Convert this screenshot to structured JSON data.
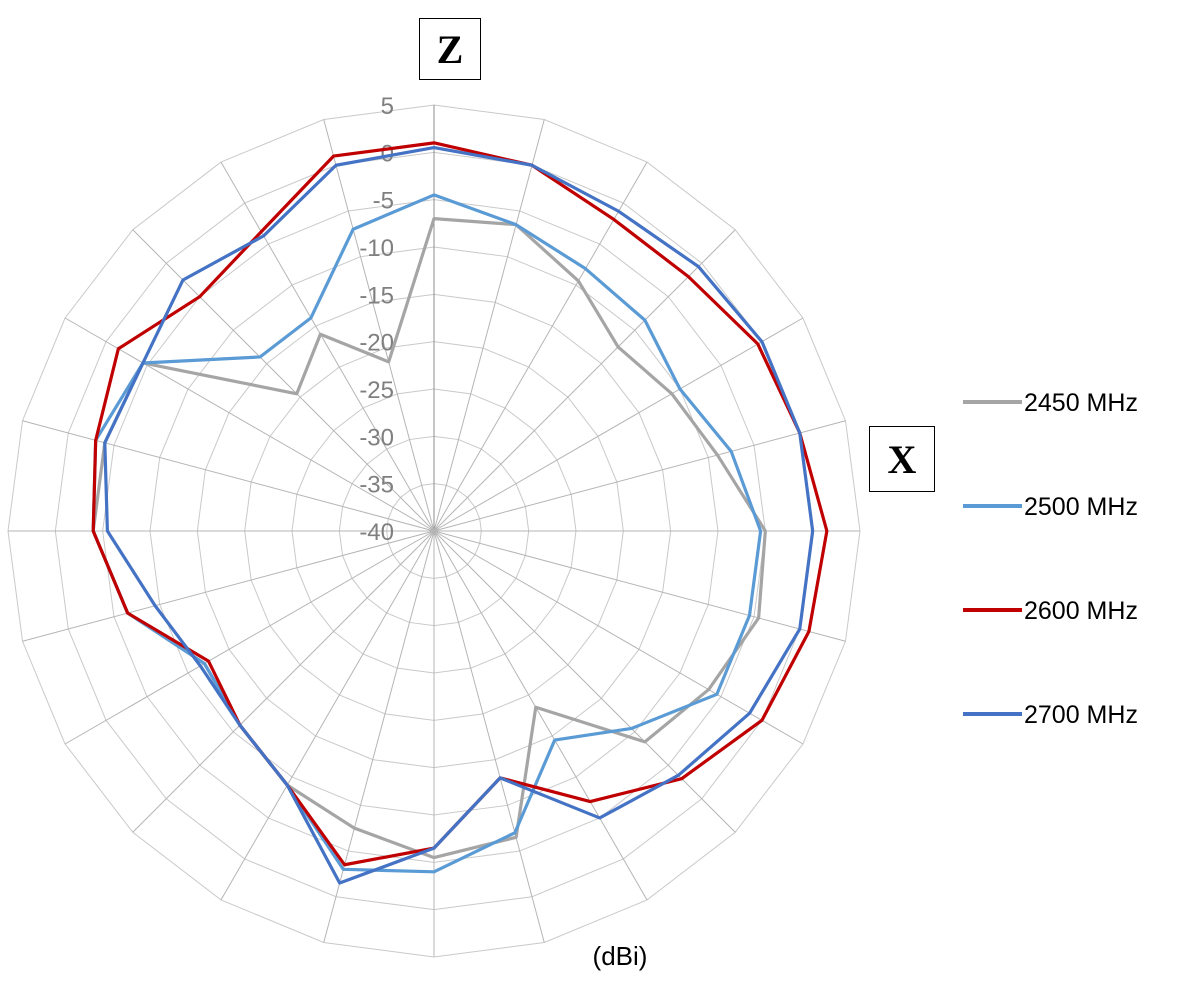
{
  "chart_data": {
    "type": "radar",
    "title": "",
    "unit": "(dBi)",
    "angle_count": 24,
    "r_min": -40,
    "r_max": 5,
    "r_step": 5,
    "r_ticks": [
      "5",
      "0",
      "-5",
      "-10",
      "-15",
      "-20",
      "-25",
      "-30",
      "-35",
      "-40"
    ],
    "axis_labels": {
      "top": "Z",
      "right": "X"
    },
    "grid": true,
    "legend_position": "right",
    "series": [
      {
        "name": "2450 MHz",
        "color": "#A5A5A5",
        "values": [
          -7.0,
          -6.5,
          -9.5,
          -12.5,
          -11.0,
          -9.0,
          -5.0,
          -4.5,
          -6.5,
          -8.5,
          -18.5,
          -6.5,
          -5.5,
          -7.5,
          -9.0,
          -11.0,
          -12.0,
          -6.5,
          -4.0,
          -4.0,
          -4.5,
          -19.5,
          -16.0,
          -21.5
        ]
      },
      {
        "name": "2500 MHz",
        "color": "#5B9BD5",
        "values": [
          -4.5,
          -6.5,
          -8.0,
          -8.5,
          -10.0,
          -7.5,
          -5.5,
          -5.5,
          -5.5,
          -10.5,
          -14.5,
          -7.0,
          -4.0,
          -3.0,
          -9.0,
          -11.0,
          -12.0,
          -6.5,
          -4.0,
          -3.0,
          -4.5,
          -14.0,
          -14.0,
          -7.0
        ]
      },
      {
        "name": "2600 MHz",
        "color": "#C00000",
        "values": [
          1.0,
          0.0,
          -2.0,
          -2.0,
          -0.5,
          0.0,
          1.5,
          1.0,
          0.0,
          -3.0,
          -7.0,
          -13.0,
          -6.5,
          -3.5,
          -9.0,
          -11.0,
          -12.5,
          -6.5,
          -4.0,
          -3.0,
          -1.5,
          -5.0,
          -3.5,
          1.0
        ]
      },
      {
        "name": "2700 MHz",
        "color": "#4472C4",
        "values": [
          0.5,
          0.0,
          -1.0,
          -0.5,
          0.0,
          0.0,
          0.0,
          0.0,
          -1.5,
          -3.5,
          -5.0,
          -13.0,
          -6.5,
          -1.5,
          -9.0,
          -11.0,
          -11.5,
          -9.5,
          -5.5,
          -4.0,
          -4.5,
          -2.5,
          -4.0,
          0.0
        ]
      }
    ]
  }
}
